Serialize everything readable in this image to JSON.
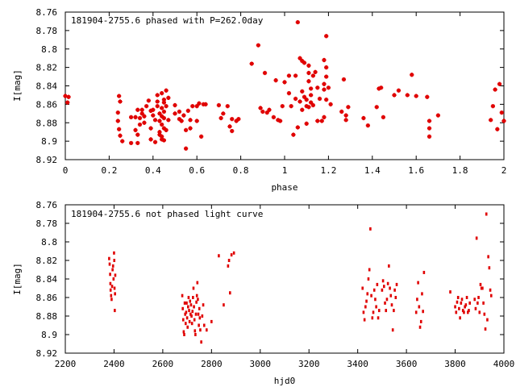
{
  "chart_data": [
    {
      "type": "scatter",
      "title": "181904-2755.6 phased with P=262.0day",
      "xlabel": "phase",
      "ylabel": "I[mag]",
      "xlim": [
        0,
        2
      ],
      "ylim": [
        8.92,
        8.76
      ],
      "y_inverted": true,
      "grid": false,
      "marker_color": "#e00000",
      "marker": "filled-cross",
      "xticks": [
        0,
        0.2,
        0.4,
        0.6,
        0.8,
        1,
        1.2,
        1.4,
        1.6,
        1.8,
        2
      ],
      "xtick_labels": [
        "0",
        "0.2",
        "0.4",
        "0.6",
        "0.8",
        "1",
        "1.2",
        "1.4",
        "1.6",
        "1.8",
        "2"
      ],
      "yticks": [
        8.76,
        8.78,
        8.8,
        8.82,
        8.84,
        8.86,
        8.88,
        8.9,
        8.92
      ],
      "ytick_labels": [
        "8.76",
        "8.78",
        "8.8",
        "8.82",
        "8.84",
        "8.86",
        "8.88",
        "8.9",
        "8.92"
      ],
      "points": [
        [
          0.0,
          8.851
        ],
        [
          0.01,
          8.858
        ],
        [
          0.015,
          8.852
        ],
        [
          0.245,
          8.851
        ],
        [
          0.25,
          8.857
        ],
        [
          0.24,
          8.869
        ],
        [
          0.24,
          8.878
        ],
        [
          0.245,
          8.887
        ],
        [
          0.25,
          8.894
        ],
        [
          0.26,
          8.9
        ],
        [
          0.3,
          8.874
        ],
        [
          0.3,
          8.902
        ],
        [
          0.32,
          8.874
        ],
        [
          0.32,
          8.888
        ],
        [
          0.33,
          8.893
        ],
        [
          0.33,
          8.866
        ],
        [
          0.33,
          8.902
        ],
        [
          0.34,
          8.882
        ],
        [
          0.34,
          8.875
        ],
        [
          0.35,
          8.87
        ],
        [
          0.35,
          8.866
        ],
        [
          0.36,
          8.873
        ],
        [
          0.36,
          8.88
        ],
        [
          0.37,
          8.862
        ],
        [
          0.38,
          8.856
        ],
        [
          0.39,
          8.898
        ],
        [
          0.39,
          8.886
        ],
        [
          0.39,
          8.867
        ],
        [
          0.4,
          8.872
        ],
        [
          0.4,
          8.866
        ],
        [
          0.41,
          8.901
        ],
        [
          0.41,
          8.877
        ],
        [
          0.42,
          8.862
        ],
        [
          0.42,
          8.857
        ],
        [
          0.42,
          8.85
        ],
        [
          0.43,
          8.878
        ],
        [
          0.43,
          8.893
        ],
        [
          0.43,
          8.87
        ],
        [
          0.43,
          8.89
        ],
        [
          0.44,
          8.864
        ],
        [
          0.44,
          8.873
        ],
        [
          0.44,
          8.882
        ],
        [
          0.44,
          8.895
        ],
        [
          0.44,
          8.898
        ],
        [
          0.44,
          8.848
        ],
        [
          0.45,
          8.858
        ],
        [
          0.45,
          8.868
        ],
        [
          0.45,
          8.886
        ],
        [
          0.45,
          8.899
        ],
        [
          0.45,
          8.855
        ],
        [
          0.45,
          8.875
        ],
        [
          0.46,
          8.845
        ],
        [
          0.46,
          8.862
        ],
        [
          0.46,
          8.888
        ],
        [
          0.47,
          8.877
        ],
        [
          0.47,
          8.853
        ],
        [
          0.5,
          8.87
        ],
        [
          0.5,
          8.861
        ],
        [
          0.52,
          8.876
        ],
        [
          0.52,
          8.868
        ],
        [
          0.53,
          8.878
        ],
        [
          0.54,
          8.872
        ],
        [
          0.55,
          8.888
        ],
        [
          0.55,
          8.908
        ],
        [
          0.56,
          8.867
        ],
        [
          0.57,
          8.886
        ],
        [
          0.57,
          8.877
        ],
        [
          0.58,
          8.862
        ],
        [
          0.6,
          8.862
        ],
        [
          0.6,
          8.878
        ],
        [
          0.61,
          8.859
        ],
        [
          0.62,
          8.895
        ],
        [
          0.63,
          8.86
        ],
        [
          0.64,
          8.86
        ],
        [
          0.7,
          8.861
        ],
        [
          0.71,
          8.875
        ],
        [
          0.72,
          8.87
        ],
        [
          0.74,
          8.862
        ],
        [
          0.75,
          8.884
        ],
        [
          0.76,
          8.876
        ],
        [
          0.76,
          8.889
        ],
        [
          0.78,
          8.878
        ],
        [
          0.79,
          8.876
        ],
        [
          0.85,
          8.816
        ],
        [
          0.88,
          8.796
        ],
        [
          0.89,
          8.864
        ],
        [
          0.9,
          8.868
        ],
        [
          0.91,
          8.826
        ],
        [
          0.92,
          8.869
        ],
        [
          0.93,
          8.866
        ],
        [
          0.95,
          8.874
        ],
        [
          0.96,
          8.834
        ],
        [
          0.97,
          8.877
        ],
        [
          0.98,
          8.878
        ],
        [
          0.99,
          8.862
        ],
        [
          1.0,
          8.836
        ],
        [
          1.02,
          8.848
        ],
        [
          1.02,
          8.829
        ],
        [
          1.03,
          8.862
        ],
        [
          1.04,
          8.893
        ],
        [
          1.05,
          8.829
        ],
        [
          1.05,
          8.854
        ],
        [
          1.06,
          8.771
        ],
        [
          1.06,
          8.885
        ],
        [
          1.07,
          8.81
        ],
        [
          1.07,
          8.857
        ],
        [
          1.08,
          8.866
        ],
        [
          1.08,
          8.813
        ],
        [
          1.08,
          8.846
        ],
        [
          1.09,
          8.852
        ],
        [
          1.09,
          8.815
        ],
        [
          1.1,
          8.855
        ],
        [
          1.1,
          8.862
        ],
        [
          1.1,
          8.881
        ],
        [
          1.11,
          8.818
        ],
        [
          1.11,
          8.826
        ],
        [
          1.11,
          8.835
        ],
        [
          1.11,
          8.863
        ],
        [
          1.12,
          8.858
        ],
        [
          1.12,
          8.85
        ],
        [
          1.12,
          8.843
        ],
        [
          1.13,
          8.829
        ],
        [
          1.13,
          8.861
        ],
        [
          1.14,
          8.825
        ],
        [
          1.15,
          8.878
        ],
        [
          1.15,
          8.842
        ],
        [
          1.16,
          8.854
        ],
        [
          1.17,
          8.878
        ],
        [
          1.18,
          8.812
        ],
        [
          1.18,
          8.838
        ],
        [
          1.18,
          8.844
        ],
        [
          1.18,
          8.874
        ],
        [
          1.19,
          8.82
        ],
        [
          1.19,
          8.786
        ],
        [
          1.19,
          8.83
        ],
        [
          1.19,
          8.855
        ],
        [
          1.2,
          8.842
        ],
        [
          1.21,
          8.86
        ],
        [
          1.26,
          8.868
        ],
        [
          1.27,
          8.833
        ],
        [
          1.28,
          8.872
        ],
        [
          1.28,
          8.877
        ],
        [
          1.29,
          8.863
        ],
        [
          1.36,
          8.875
        ],
        [
          1.38,
          8.883
        ],
        [
          1.42,
          8.863
        ],
        [
          1.43,
          8.843
        ],
        [
          1.44,
          8.842
        ],
        [
          1.45,
          8.874
        ],
        [
          1.5,
          8.85
        ],
        [
          1.52,
          8.845
        ],
        [
          1.56,
          8.85
        ],
        [
          1.58,
          8.828
        ],
        [
          1.6,
          8.851
        ],
        [
          1.65,
          8.852
        ],
        [
          1.66,
          8.878
        ],
        [
          1.66,
          8.895
        ],
        [
          1.66,
          8.886
        ],
        [
          1.7,
          8.872
        ],
        [
          1.94,
          8.877
        ],
        [
          1.95,
          8.862
        ],
        [
          1.96,
          8.844
        ],
        [
          1.97,
          8.887
        ],
        [
          1.98,
          8.838
        ],
        [
          1.99,
          8.869
        ],
        [
          2.0,
          8.878
        ]
      ]
    },
    {
      "type": "scatter",
      "title": "181904-2755.6 not phased light curve",
      "xlabel": "hjd0",
      "ylabel": "I[mag]",
      "xlim": [
        2200,
        4000
      ],
      "ylim": [
        8.92,
        8.76
      ],
      "y_inverted": true,
      "grid": false,
      "marker_color": "#e00000",
      "marker": "small-dot",
      "xticks": [
        2200,
        2400,
        2600,
        2800,
        3000,
        3200,
        3400,
        3600,
        3800,
        4000
      ],
      "xtick_labels": [
        "2200",
        "2400",
        "2600",
        "2800",
        "3000",
        "3200",
        "3400",
        "3600",
        "3800",
        "4000"
      ],
      "yticks": [
        8.76,
        8.78,
        8.8,
        8.82,
        8.84,
        8.86,
        8.88,
        8.9,
        8.92
      ],
      "ytick_labels": [
        "8.76",
        "8.78",
        "8.8",
        "8.82",
        "8.84",
        "8.86",
        "8.88",
        "8.9",
        "8.92"
      ],
      "points": [
        [
          2380,
          8.818
        ],
        [
          2382,
          8.824
        ],
        [
          2384,
          8.835
        ],
        [
          2385,
          8.845
        ],
        [
          2386,
          8.852
        ],
        [
          2388,
          8.858
        ],
        [
          2390,
          8.862
        ],
        [
          2392,
          8.848
        ],
        [
          2394,
          8.83
        ],
        [
          2396,
          8.826
        ],
        [
          2398,
          8.84
        ],
        [
          2400,
          8.812
        ],
        [
          2401,
          8.82
        ],
        [
          2402,
          8.85
        ],
        [
          2403,
          8.874
        ],
        [
          2404,
          8.856
        ],
        [
          2405,
          8.836
        ],
        [
          2680,
          8.858
        ],
        [
          2682,
          8.872
        ],
        [
          2684,
          8.884
        ],
        [
          2686,
          8.897
        ],
        [
          2688,
          8.9
        ],
        [
          2690,
          8.866
        ],
        [
          2692,
          8.878
        ],
        [
          2694,
          8.888
        ],
        [
          2696,
          8.876
        ],
        [
          2698,
          8.866
        ],
        [
          2700,
          8.882
        ],
        [
          2702,
          8.892
        ],
        [
          2704,
          8.87
        ],
        [
          2706,
          8.86
        ],
        [
          2708,
          8.874
        ],
        [
          2710,
          8.886
        ],
        [
          2712,
          8.864
        ],
        [
          2714,
          8.878
        ],
        [
          2716,
          8.868
        ],
        [
          2718,
          8.88
        ],
        [
          2720,
          8.888
        ],
        [
          2722,
          8.875
        ],
        [
          2724,
          8.86
        ],
        [
          2726,
          8.85
        ],
        [
          2728,
          8.87
        ],
        [
          2730,
          8.884
        ],
        [
          2732,
          8.896
        ],
        [
          2734,
          8.9
        ],
        [
          2736,
          8.878
        ],
        [
          2738,
          8.865
        ],
        [
          2740,
          8.858
        ],
        [
          2742,
          8.844
        ],
        [
          2744,
          8.862
        ],
        [
          2746,
          8.878
        ],
        [
          2748,
          8.89
        ],
        [
          2750,
          8.872
        ],
        [
          2752,
          8.882
        ],
        [
          2754,
          8.895
        ],
        [
          2758,
          8.908
        ],
        [
          2762,
          8.88
        ],
        [
          2766,
          8.868
        ],
        [
          2770,
          8.89
        ],
        [
          2780,
          8.895
        ],
        [
          2800,
          8.886
        ],
        [
          2830,
          8.815
        ],
        [
          2850,
          8.868
        ],
        [
          2868,
          8.826
        ],
        [
          2872,
          8.82
        ],
        [
          2876,
          8.855
        ],
        [
          2882,
          8.814
        ],
        [
          2892,
          8.812
        ],
        [
          3420,
          8.85
        ],
        [
          3424,
          8.876
        ],
        [
          3428,
          8.884
        ],
        [
          3432,
          8.87
        ],
        [
          3436,
          8.864
        ],
        [
          3440,
          8.856
        ],
        [
          3444,
          8.84
        ],
        [
          3448,
          8.83
        ],
        [
          3452,
          8.786
        ],
        [
          3456,
          8.858
        ],
        [
          3460,
          8.882
        ],
        [
          3464,
          8.876
        ],
        [
          3468,
          8.852
        ],
        [
          3472,
          8.862
        ],
        [
          3476,
          8.87
        ],
        [
          3480,
          8.846
        ],
        [
          3484,
          8.882
        ],
        [
          3488,
          8.874
        ],
        [
          3500,
          8.852
        ],
        [
          3504,
          8.842
        ],
        [
          3508,
          8.848
        ],
        [
          3512,
          8.866
        ],
        [
          3516,
          8.874
        ],
        [
          3520,
          8.862
        ],
        [
          3524,
          8.845
        ],
        [
          3528,
          8.826
        ],
        [
          3532,
          8.85
        ],
        [
          3536,
          8.858
        ],
        [
          3540,
          8.868
        ],
        [
          3544,
          8.895
        ],
        [
          3548,
          8.874
        ],
        [
          3552,
          8.852
        ],
        [
          3556,
          8.86
        ],
        [
          3560,
          8.846
        ],
        [
          3640,
          8.876
        ],
        [
          3644,
          8.862
        ],
        [
          3648,
          8.844
        ],
        [
          3652,
          8.87
        ],
        [
          3656,
          8.892
        ],
        [
          3660,
          8.886
        ],
        [
          3664,
          8.856
        ],
        [
          3668,
          8.875
        ],
        [
          3672,
          8.833
        ],
        [
          3780,
          8.854
        ],
        [
          3800,
          8.87
        ],
        [
          3804,
          8.876
        ],
        [
          3808,
          8.865
        ],
        [
          3812,
          8.86
        ],
        [
          3816,
          8.872
        ],
        [
          3820,
          8.882
        ],
        [
          3824,
          8.866
        ],
        [
          3828,
          8.862
        ],
        [
          3832,
          8.874
        ],
        [
          3836,
          8.876
        ],
        [
          3840,
          8.87
        ],
        [
          3844,
          8.868
        ],
        [
          3848,
          8.86
        ],
        [
          3852,
          8.876
        ],
        [
          3856,
          8.874
        ],
        [
          3860,
          8.866
        ],
        [
          3880,
          8.862
        ],
        [
          3884,
          8.872
        ],
        [
          3888,
          8.796
        ],
        [
          3892,
          8.866
        ],
        [
          3896,
          8.86
        ],
        [
          3900,
          8.876
        ],
        [
          3904,
          8.846
        ],
        [
          3908,
          8.85
        ],
        [
          3912,
          8.85
        ],
        [
          3916,
          8.866
        ],
        [
          3920,
          8.878
        ],
        [
          3924,
          8.894
        ],
        [
          3928,
          8.77
        ],
        [
          3932,
          8.884
        ],
        [
          3936,
          8.816
        ],
        [
          3940,
          8.828
        ],
        [
          3944,
          8.852
        ],
        [
          3948,
          8.858
        ]
      ]
    }
  ]
}
